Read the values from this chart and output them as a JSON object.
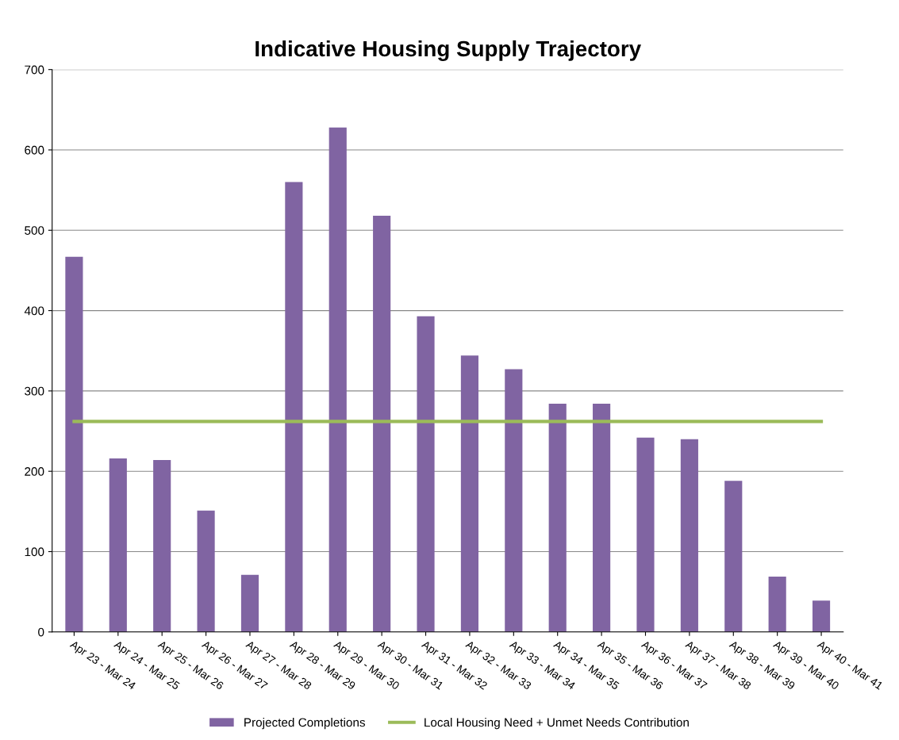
{
  "chart_data": {
    "type": "bar",
    "title": "Indicative Housing Supply Trajectory",
    "categories": [
      "Apr 23 - Mar 24",
      "Apr 24 - Mar 25",
      "Apr 25 - Mar 26",
      "Apr 26 - Mar 27",
      "Apr 27 - Mar 28",
      "Apr 28 - Mar 29",
      "Apr 29 - Mar 30",
      "Apr 30 - Mar 31",
      "Apr 31 - Mar 32",
      "Apr 32 - Mar 33",
      "Apr 33 - Mar 34",
      "Apr 34 - Mar 35",
      "Apr 35 - Mar 36",
      "Apr 36 - Mar 37",
      "Apr 37 - Mar 38",
      "Apr 38 - Mar 39",
      "Apr 39 - Mar 40",
      "Apr 40 - Mar 41"
    ],
    "series": [
      {
        "name": "Projected Completions",
        "color": "#8064a2",
        "values": [
          467,
          216,
          214,
          151,
          71,
          560,
          628,
          518,
          393,
          344,
          327,
          284,
          284,
          242,
          240,
          188,
          69,
          39
        ]
      },
      {
        "name": "Local Housing Need + Unmet Needs Contribution",
        "type": "line",
        "color": "#9bbb59",
        "values": [
          262,
          262,
          262,
          262,
          262,
          262,
          262,
          262,
          262,
          262,
          262,
          262,
          262,
          262,
          262,
          262,
          262,
          262
        ]
      }
    ],
    "ylim": [
      0,
      700
    ],
    "yticks": [
      0,
      100,
      200,
      300,
      400,
      500,
      600,
      700
    ],
    "grid": "y",
    "legend": "bottom"
  }
}
